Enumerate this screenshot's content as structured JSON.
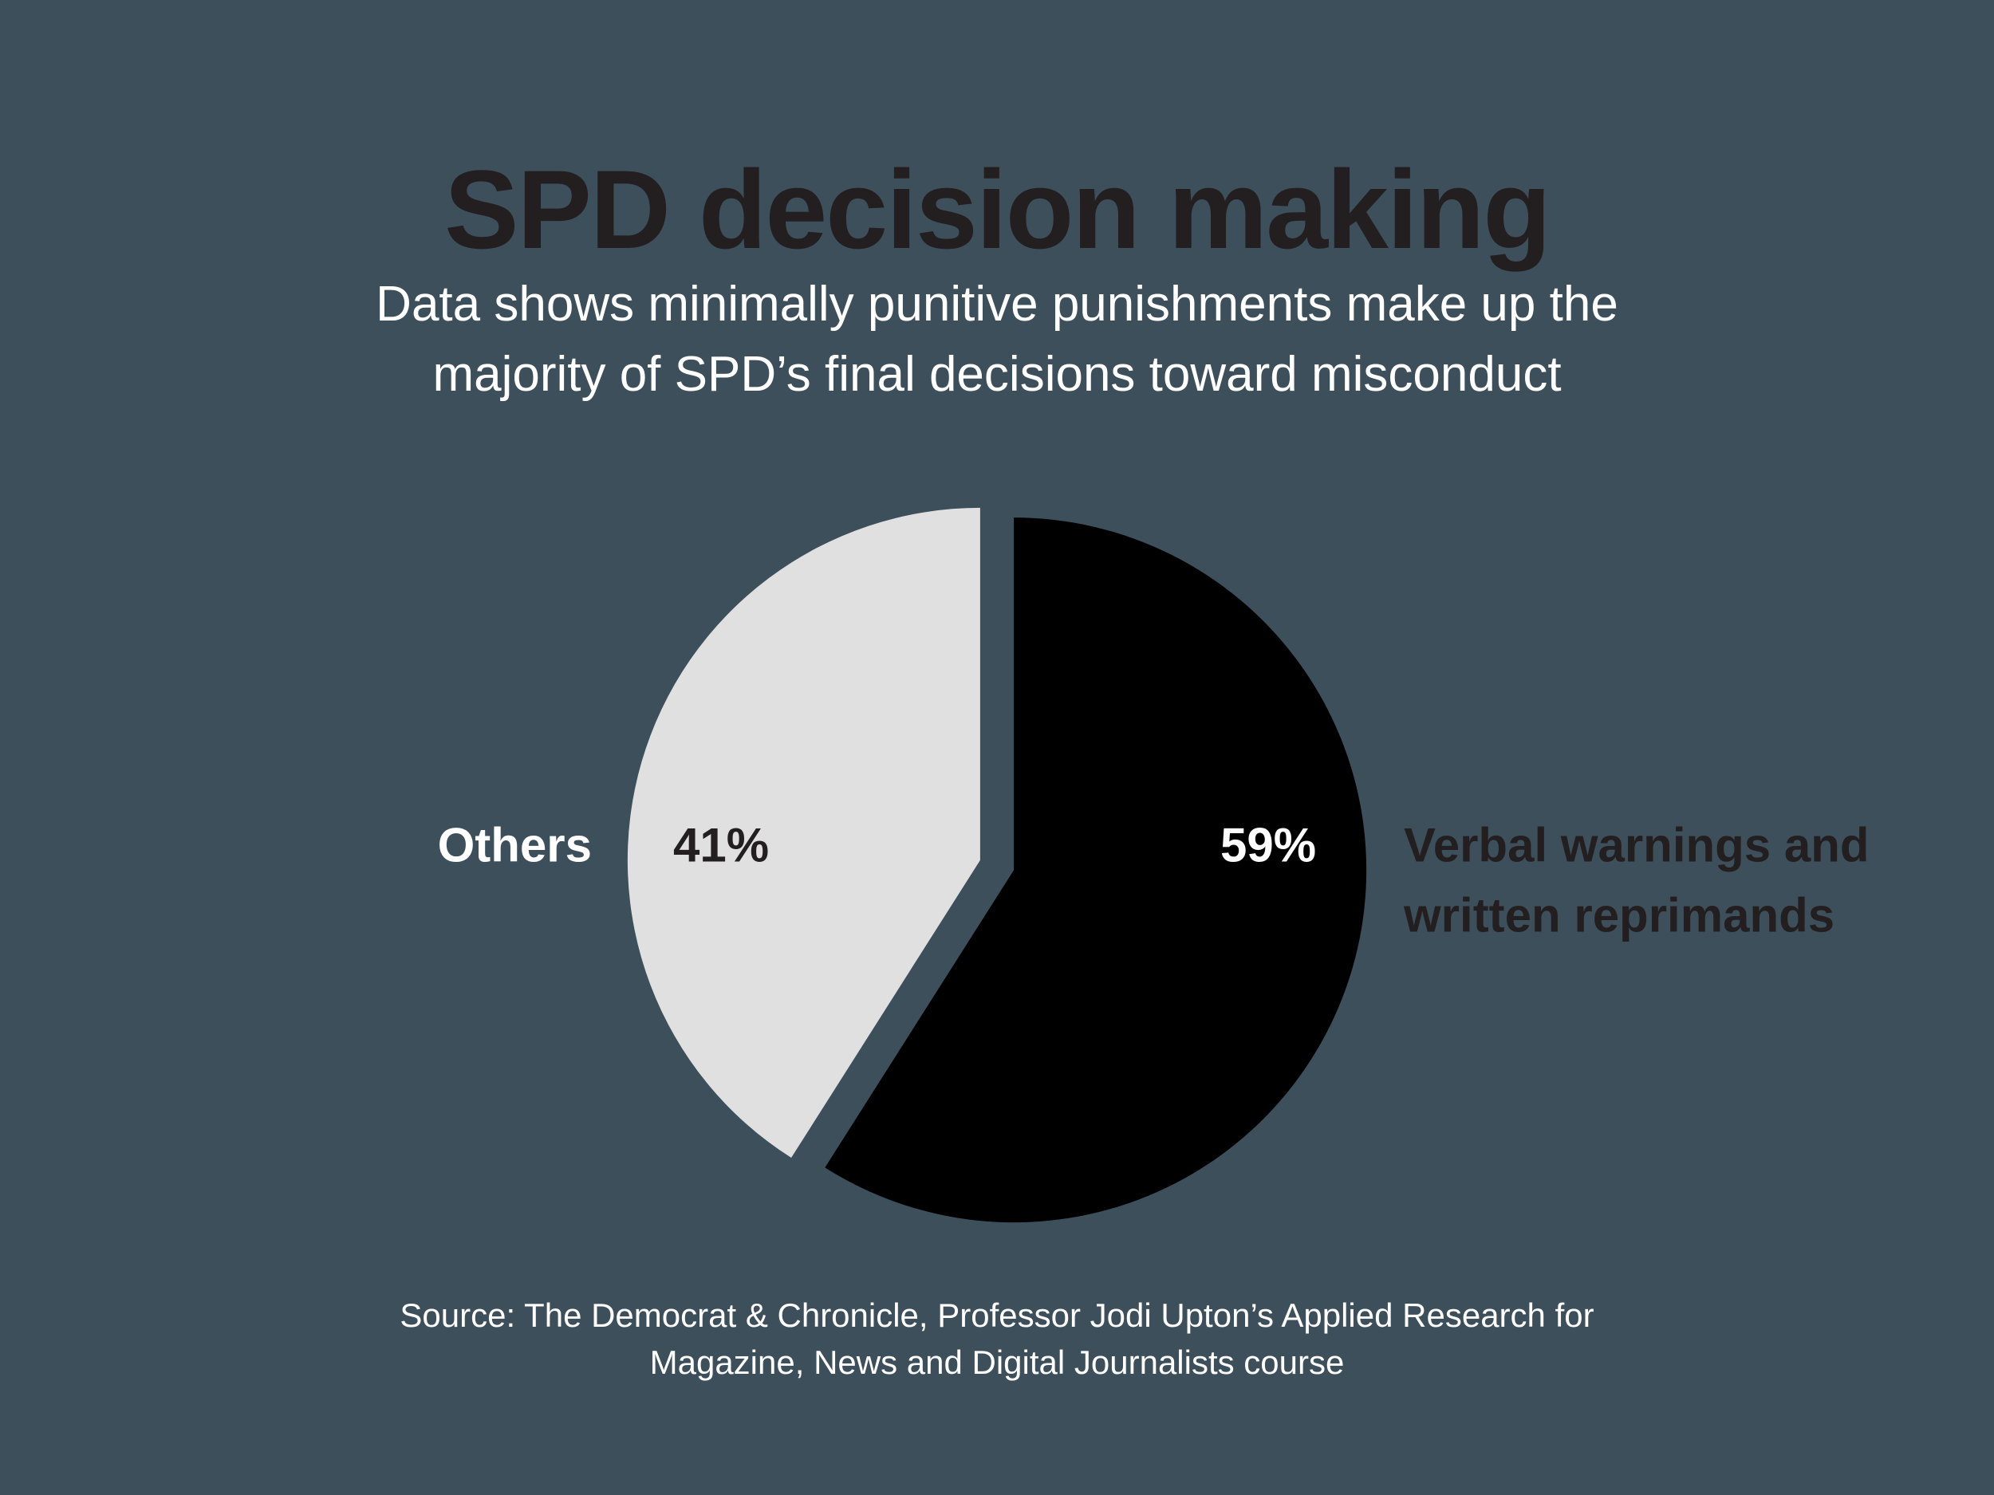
{
  "title": "SPD decision making",
  "subtitle": "Data shows minimally punitive punishments make up the majority of SPD’s final decisions toward misconduct",
  "source": "Source: The Democrat & Chronicle, Professor Jodi Upton’s Applied Research for Magazine, News and Digital Journalists course",
  "colors": {
    "background": "#3e4f5c",
    "title": "#231f20",
    "text_light": "#ffffff",
    "text_dark": "#231f20"
  },
  "chart_data": {
    "type": "pie",
    "title": "SPD decision making",
    "slices": [
      {
        "label": "Verbal warnings and written reprimands",
        "label_lines": [
          "Verbal warnings and",
          "written reprimands"
        ],
        "value": 59,
        "value_label": "59%",
        "color": "#000000",
        "value_label_color": "#ffffff",
        "label_color": "#231f20"
      },
      {
        "label": "Others",
        "label_lines": [
          "Others"
        ],
        "value": 41,
        "value_label": "41%",
        "color": "#e0e0e0",
        "value_label_color": "#231f20",
        "label_color": "#ffffff"
      }
    ],
    "start_angle": "12 o'clock",
    "direction": "clockwise",
    "exploded": true
  }
}
